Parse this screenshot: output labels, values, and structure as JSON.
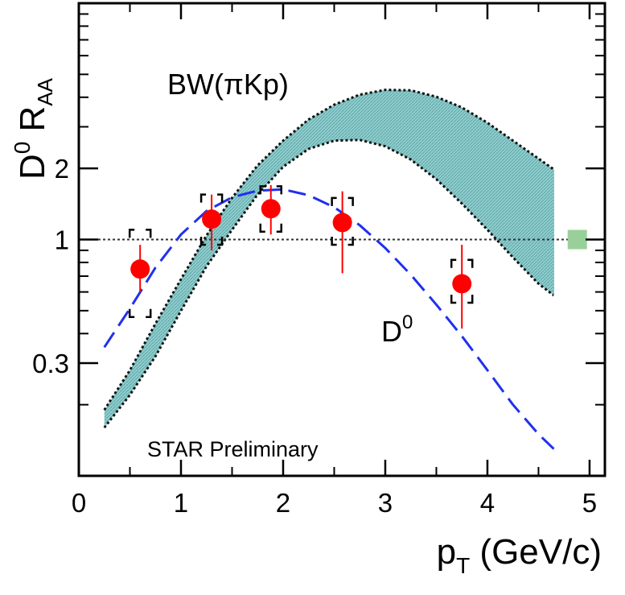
{
  "chart_data": {
    "type": "scatter",
    "yscale": "log",
    "xlim": [
      0,
      5.15
    ],
    "ylim": [
      0.1,
      10
    ],
    "xticks": [
      0,
      1,
      2,
      3,
      4,
      5
    ],
    "xtick_labels": [
      "0",
      "1",
      "2",
      "3",
      "4",
      "5"
    ],
    "yticks": [
      0.3,
      1,
      2
    ],
    "ytick_labels": [
      "0.3",
      "1",
      "2"
    ],
    "ylabel": {
      "main": "D",
      "sup": "0",
      "space": " ",
      "main2": "R",
      "sub": "AA"
    },
    "xlabel": {
      "main": "p",
      "sub": "T",
      "rest": " (GeV/c)"
    },
    "reference_line": 1,
    "series": [
      {
        "name": "D0 data",
        "type": "points",
        "color": "#ff0000",
        "x": [
          0.6,
          1.3,
          1.88,
          2.58,
          3.75
        ],
        "y": [
          0.75,
          1.22,
          1.35,
          1.18,
          0.65
        ],
        "stat_err_low": [
          0.6,
          0.9,
          1.05,
          0.72,
          0.42
        ],
        "stat_err_high": [
          0.95,
          1.55,
          1.7,
          1.6,
          0.95
        ],
        "sys_err_low": [
          0.47,
          0.95,
          1.08,
          0.95,
          0.54
        ],
        "sys_err_high": [
          1.1,
          1.55,
          1.68,
          1.5,
          0.82
        ]
      },
      {
        "name": "D0 model",
        "type": "dashed-line",
        "color": "#2030ee",
        "x": [
          0.25,
          0.5,
          0.75,
          1.0,
          1.25,
          1.5,
          1.75,
          2.0,
          2.25,
          2.5,
          2.75,
          3.0,
          3.25,
          3.5,
          3.75,
          4.0,
          4.25,
          4.5,
          4.65
        ],
        "y": [
          0.35,
          0.51,
          0.76,
          1.05,
          1.32,
          1.51,
          1.61,
          1.63,
          1.54,
          1.37,
          1.15,
          0.92,
          0.71,
          0.53,
          0.39,
          0.28,
          0.2,
          0.15,
          0.13
        ]
      },
      {
        "name": "BW(πKp)",
        "type": "band",
        "color": "#7fc4c4",
        "x": [
          0.25,
          0.5,
          0.75,
          1.0,
          1.25,
          1.5,
          1.75,
          2.0,
          2.25,
          2.5,
          2.75,
          3.0,
          3.25,
          3.5,
          3.75,
          4.0,
          4.25,
          4.5,
          4.65
        ],
        "upper": [
          0.19,
          0.28,
          0.44,
          0.68,
          1.04,
          1.5,
          2.06,
          2.62,
          3.22,
          3.72,
          4.1,
          4.3,
          4.28,
          4.02,
          3.62,
          3.12,
          2.62,
          2.2,
          1.98
        ],
        "lower": [
          0.16,
          0.22,
          0.32,
          0.5,
          0.77,
          1.1,
          1.55,
          2.03,
          2.42,
          2.62,
          2.64,
          2.48,
          2.18,
          1.8,
          1.42,
          1.1,
          0.84,
          0.65,
          0.58
        ]
      }
    ],
    "norm_box": {
      "x": 4.88,
      "y": 1.0,
      "color": "#99d099"
    },
    "annotations": {
      "bw_label": "BW(πKp)",
      "d0_label": "D",
      "d0_sup": "0",
      "watermark": "STAR Preliminary"
    }
  }
}
